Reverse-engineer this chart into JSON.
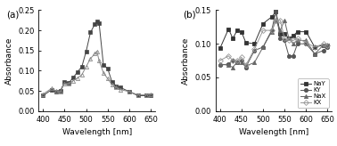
{
  "left": {
    "series1": {
      "x": [
        400,
        420,
        430,
        440,
        450,
        460,
        470,
        480,
        490,
        500,
        510,
        520,
        525,
        530,
        540,
        550,
        560,
        570,
        580,
        600,
        620,
        640,
        650
      ],
      "y": [
        0.038,
        0.053,
        0.048,
        0.05,
        0.072,
        0.07,
        0.083,
        0.097,
        0.11,
        0.148,
        0.195,
        0.215,
        0.222,
        0.218,
        0.115,
        0.105,
        0.072,
        0.062,
        0.058,
        0.048,
        0.038,
        0.038,
        0.038
      ],
      "marker": "s",
      "markersize": 3,
      "color": "#444444"
    },
    "series2": {
      "x": [
        400,
        420,
        430,
        440,
        450,
        460,
        470,
        480,
        490,
        500,
        510,
        520,
        525,
        530,
        540,
        550,
        560,
        570,
        580,
        600,
        620,
        640,
        650
      ],
      "y": [
        0.042,
        0.056,
        0.05,
        0.048,
        0.068,
        0.068,
        0.075,
        0.082,
        0.09,
        0.11,
        0.13,
        0.142,
        0.148,
        0.125,
        0.095,
        0.08,
        0.065,
        0.058,
        0.053,
        0.048,
        0.04,
        0.04,
        0.042
      ],
      "marker": "^",
      "markersize": 3,
      "color": "#888888"
    },
    "xlabel": "Wavelength [nm]",
    "ylabel": "Absorbance",
    "label": "(a)",
    "xlim": [
      390,
      660
    ],
    "ylim": [
      0.0,
      0.25
    ],
    "yticks": [
      0.0,
      0.05,
      0.1,
      0.15,
      0.2,
      0.25
    ]
  },
  "right": {
    "NaY": {
      "x": [
        400,
        420,
        430,
        440,
        450,
        460,
        480,
        500,
        520,
        530,
        540,
        550,
        560,
        570,
        580,
        600,
        620,
        640,
        650
      ],
      "y": [
        0.093,
        0.122,
        0.108,
        0.12,
        0.118,
        0.102,
        0.1,
        0.13,
        0.14,
        0.148,
        0.115,
        0.115,
        0.108,
        0.112,
        0.118,
        0.118,
        0.095,
        0.098,
        0.098
      ],
      "marker": "s",
      "markersize": 3,
      "color": "#333333",
      "fillstyle": "full"
    },
    "KY": {
      "x": [
        400,
        420,
        430,
        440,
        450,
        460,
        480,
        500,
        520,
        530,
        540,
        550,
        560,
        570,
        580,
        600,
        620,
        640,
        650
      ],
      "y": [
        0.068,
        0.07,
        0.075,
        0.072,
        0.075,
        0.065,
        0.09,
        0.095,
        0.12,
        0.148,
        0.108,
        0.105,
        0.082,
        0.082,
        0.1,
        0.1,
        0.085,
        0.09,
        0.095
      ],
      "marker": "o",
      "markersize": 3,
      "color": "#555555",
      "fillstyle": "full"
    },
    "NaX": {
      "x": [
        400,
        420,
        430,
        440,
        450,
        460,
        480,
        500,
        520,
        530,
        540,
        550,
        560,
        570,
        580,
        600,
        620,
        640,
        650
      ],
      "y": [
        0.07,
        0.068,
        0.065,
        0.073,
        0.073,
        0.067,
        0.072,
        0.095,
        0.118,
        0.135,
        0.12,
        0.135,
        0.108,
        0.1,
        0.105,
        0.105,
        0.085,
        0.098,
        0.098
      ],
      "marker": "^",
      "markersize": 3,
      "color": "#666666",
      "fillstyle": "full"
    },
    "KX": {
      "x": [
        400,
        420,
        430,
        440,
        450,
        460,
        480,
        500,
        520,
        530,
        540,
        550,
        560,
        570,
        580,
        600,
        620,
        640,
        650
      ],
      "y": [
        0.075,
        0.082,
        0.075,
        0.075,
        0.08,
        0.068,
        0.092,
        0.12,
        0.12,
        0.135,
        0.135,
        0.108,
        0.105,
        0.105,
        0.108,
        0.102,
        0.095,
        0.1,
        0.098
      ],
      "marker": "D",
      "markersize": 3,
      "color": "#999999",
      "fillstyle": "none"
    },
    "xlabel": "Wavelength [nm]",
    "ylabel": "Absorbance",
    "label": "(b)",
    "xlim": [
      390,
      660
    ],
    "ylim": [
      0.0,
      0.15
    ],
    "yticks": [
      0.0,
      0.05,
      0.1,
      0.15
    ]
  }
}
